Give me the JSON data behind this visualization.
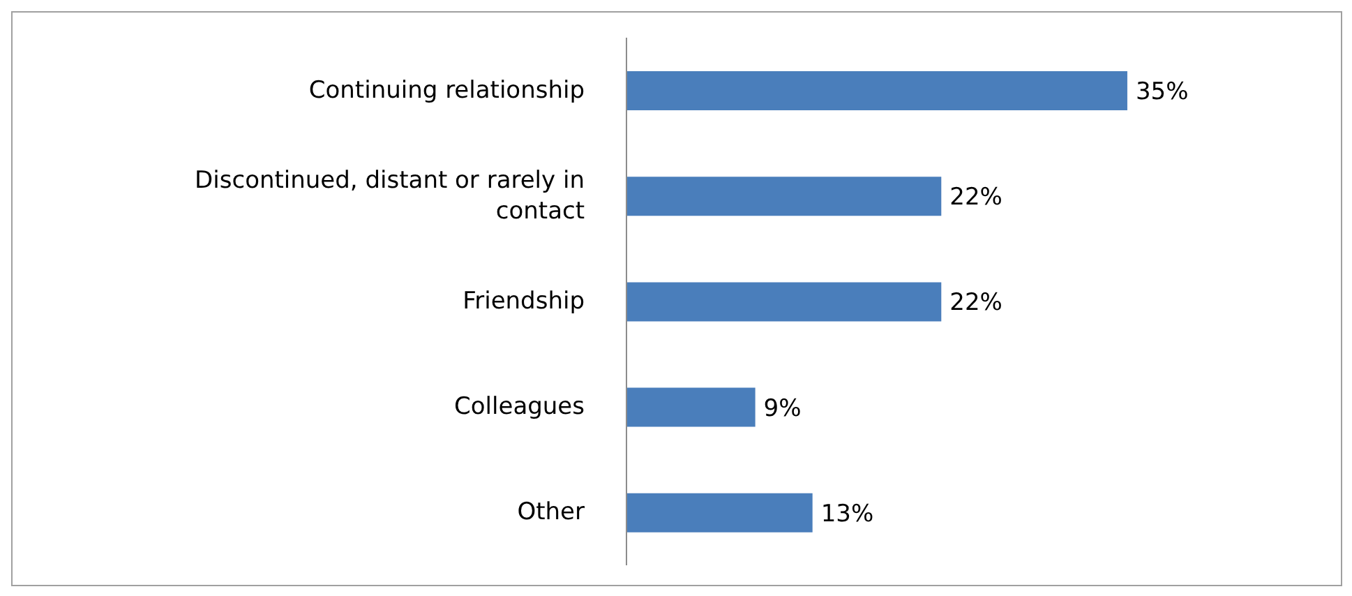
{
  "chart_data": {
    "type": "bar",
    "orientation": "horizontal",
    "categories": [
      "Continuing relationship",
      "Discontinued, distant or rarely in contact",
      "Friendship",
      "Colleagues",
      "Other"
    ],
    "values": [
      35,
      22,
      22,
      9,
      13
    ],
    "value_labels": [
      "35%",
      "22%",
      "22%",
      "9%",
      "13%"
    ],
    "color": "#4a7ebb"
  }
}
